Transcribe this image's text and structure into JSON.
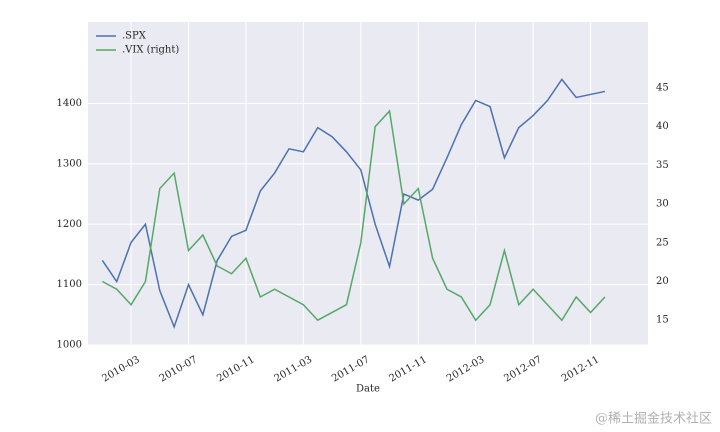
{
  "chart_data": {
    "type": "line",
    "xlabel": "Date",
    "x": [
      "2010-01",
      "2010-02",
      "2010-03",
      "2010-04",
      "2010-05",
      "2010-06",
      "2010-07",
      "2010-08",
      "2010-09",
      "2010-10",
      "2010-11",
      "2010-12",
      "2011-01",
      "2011-02",
      "2011-03",
      "2011-04",
      "2011-05",
      "2011-06",
      "2011-07",
      "2011-08",
      "2011-09",
      "2011-10",
      "2011-11",
      "2011-12",
      "2012-01",
      "2012-02",
      "2012-03",
      "2012-04",
      "2012-05",
      "2012-06",
      "2012-07",
      "2012-08",
      "2012-09",
      "2012-10",
      "2012-11",
      "2012-12"
    ],
    "series": [
      {
        "name": ".SPX",
        "color": "#4c72b0",
        "values": [
          1140,
          1105,
          1170,
          1200,
          1090,
          1030,
          1100,
          1050,
          1140,
          1180,
          1190,
          1255,
          1285,
          1325,
          1320,
          1360,
          1345,
          1320,
          1290,
          1200,
          1130,
          1250,
          1240,
          1258,
          1310,
          1365,
          1405,
          1395,
          1310,
          1360,
          1380,
          1405,
          1440,
          1410,
          1415,
          1420
        ]
      },
      {
        "name": ".VIX (right)",
        "color": "#55a868",
        "axis": "y2",
        "values": [
          20,
          19,
          17,
          20,
          32,
          34,
          24,
          26,
          22,
          21,
          23,
          18,
          19,
          18,
          17,
          15,
          16,
          17,
          25,
          40,
          42,
          30,
          32,
          23,
          19,
          18,
          15,
          17,
          24,
          17,
          19,
          17,
          15,
          18,
          16,
          18
        ]
      }
    ],
    "xlim": [
      "2009-12",
      "2013-03"
    ],
    "xticks": [
      "2010-03",
      "2010-07",
      "2010-11",
      "2011-03",
      "2011-07",
      "2011-11",
      "2012-03",
      "2012-07",
      "2012-11"
    ],
    "ylim": [
      1000,
      1535
    ],
    "yticks": [
      1000,
      1100,
      1200,
      1300,
      1400
    ],
    "y2lim": [
      11.8,
      53.5
    ],
    "y2ticks": [
      15,
      20,
      25,
      30,
      35,
      40,
      45
    ],
    "grid": true,
    "legend": "upper left",
    "watermark": "@稀土掘金技术社区"
  }
}
